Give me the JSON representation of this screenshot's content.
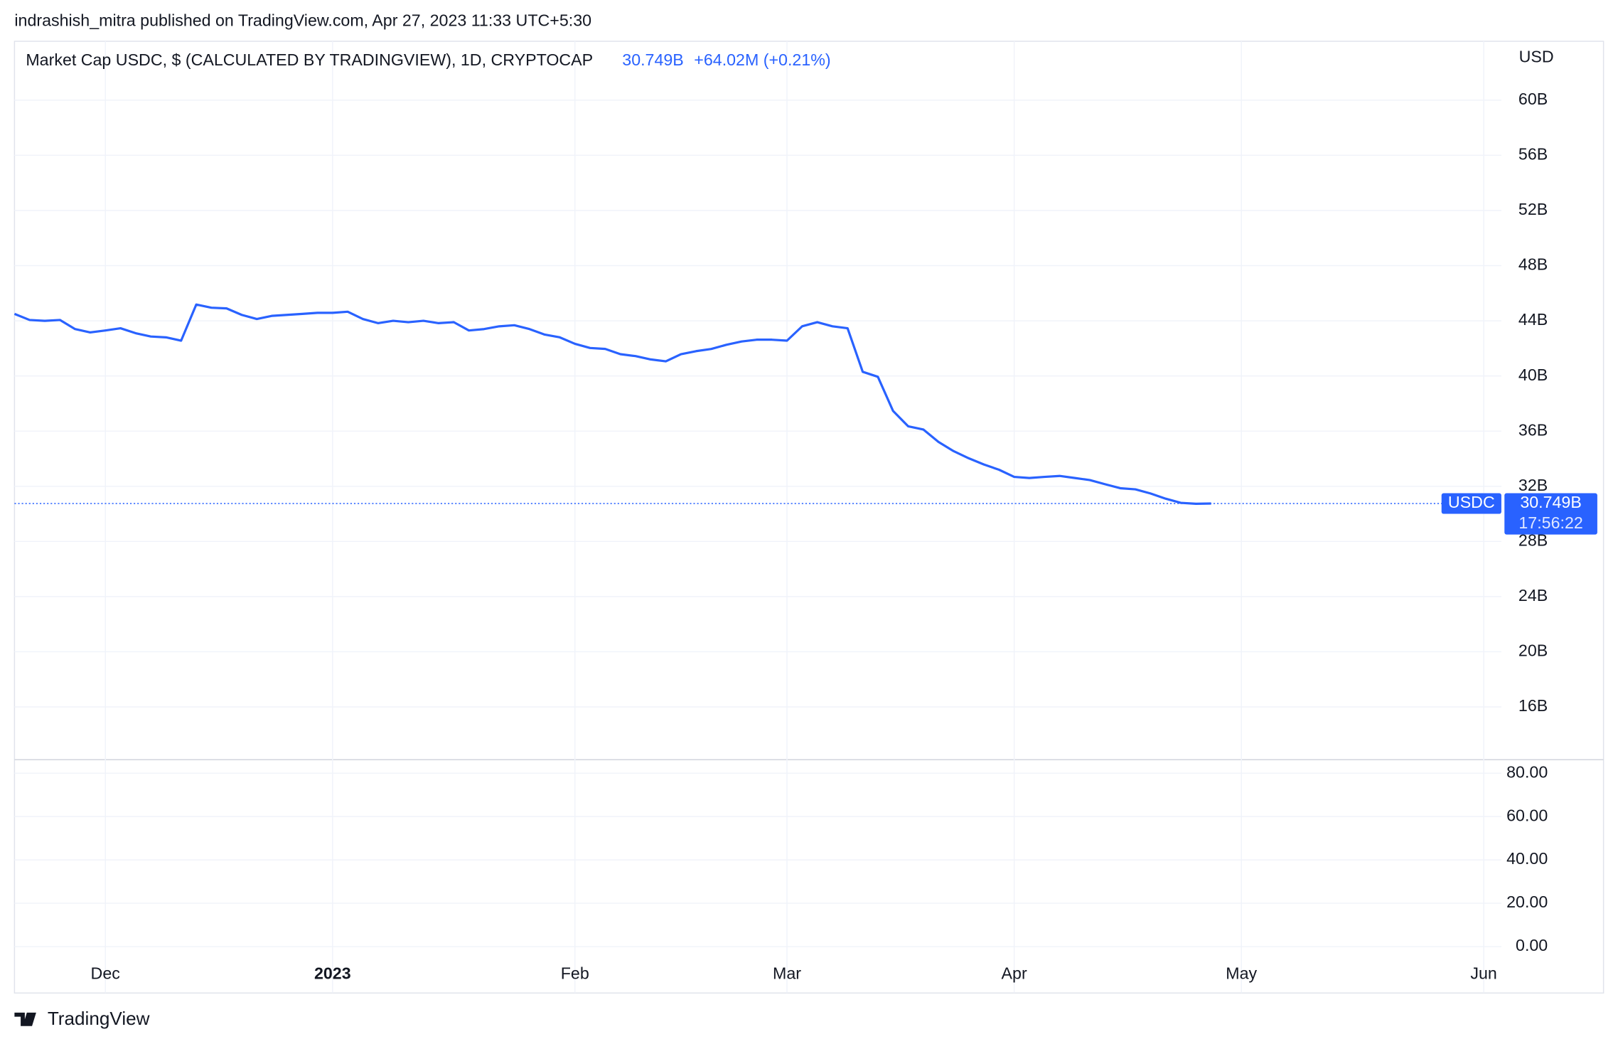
{
  "header": {
    "publisher": "indrashish_mitra published on TradingView.com, Apr 27, 2023 11:33 UTC+5:30"
  },
  "chart_data": [
    {
      "type": "line",
      "title": "Market Cap USDC, $ (CALCULATED BY TRADINGVIEW), 1D, CRYPTOCAP",
      "change": "+64.02M (+0.21%)",
      "currency": "USD",
      "categories": [
        null,
        null,
        null,
        null,
        null,
        null,
        "Dec",
        null,
        null,
        null,
        null,
        null,
        null,
        null,
        null,
        null,
        null,
        null,
        null,
        null,
        null,
        "2023",
        null,
        null,
        null,
        null,
        null,
        null,
        null,
        null,
        null,
        null,
        null,
        null,
        null,
        null,
        null,
        "Feb",
        null,
        null,
        null,
        null,
        null,
        null,
        null,
        null,
        null,
        null,
        null,
        null,
        null,
        "Mar",
        null,
        null,
        null,
        null,
        null,
        null,
        null,
        null,
        null,
        null,
        null,
        null,
        null,
        null,
        "Apr",
        null,
        null,
        null,
        null,
        null,
        null,
        null,
        null,
        null,
        null,
        null,
        null,
        null,
        null,
        "May",
        null,
        null,
        null,
        null,
        null,
        null,
        null,
        null,
        null,
        null,
        null,
        null,
        null,
        null,
        null,
        "Jun",
        null
      ],
      "series": [
        {
          "name": "USDC",
          "color": "#2962ff",
          "values": [
            44.5,
            44.06,
            44.0,
            44.06,
            43.4,
            43.16,
            43.3,
            43.46,
            43.1,
            42.86,
            42.8,
            42.56,
            45.18,
            44.95,
            44.9,
            44.43,
            44.13,
            44.36,
            44.43,
            44.5,
            44.58,
            44.58,
            44.66,
            44.13,
            43.83,
            44.0,
            43.9,
            44.0,
            43.83,
            43.9,
            43.3,
            43.4,
            43.6,
            43.68,
            43.4,
            43.0,
            42.8,
            42.33,
            42.03,
            41.96,
            41.58,
            41.44,
            41.2,
            41.06,
            41.58,
            41.8,
            41.96,
            42.26,
            42.5,
            42.63,
            42.63,
            42.56,
            43.6,
            43.9,
            43.6,
            43.46,
            40.3,
            39.94,
            37.47,
            36.35,
            36.12,
            35.22,
            34.55,
            34.03,
            33.58,
            33.2,
            32.68,
            32.6,
            32.68,
            32.75,
            32.6,
            32.45,
            32.15,
            31.86,
            31.78,
            31.48,
            31.1,
            30.8,
            30.73,
            30.749,
            null,
            null,
            null,
            null,
            null,
            null,
            null,
            null,
            null,
            null,
            null,
            null,
            null,
            null,
            null,
            null,
            null,
            null,
            null
          ]
        }
      ],
      "last": {
        "value": 30.749,
        "value_label": "30.749B",
        "countdown": "17:56:22"
      },
      "ylim": [
        12.17,
        64.27
      ],
      "yticks": [
        {
          "value": 16,
          "label": "16B"
        },
        {
          "value": 20,
          "label": "20B"
        },
        {
          "value": 24,
          "label": "24B"
        },
        {
          "value": 28,
          "label": "28B"
        },
        {
          "value": 32,
          "label": "32B"
        },
        {
          "value": 36,
          "label": "36B"
        },
        {
          "value": 40,
          "label": "40B"
        },
        {
          "value": 44,
          "label": "44B"
        },
        {
          "value": 48,
          "label": "48B"
        },
        {
          "value": 52,
          "label": "52B"
        },
        {
          "value": 56,
          "label": "56B"
        },
        {
          "value": 60,
          "label": "60B"
        }
      ],
      "grid": true
    },
    {
      "type": "volume",
      "ylim": [
        -21.4,
        86.2
      ],
      "yticks": [
        {
          "value": 0,
          "label": "0.00"
        },
        {
          "value": 20,
          "label": "20.00"
        },
        {
          "value": 40,
          "label": "40.00"
        },
        {
          "value": 60,
          "label": "60.00"
        },
        {
          "value": 80,
          "label": "80.00"
        }
      ],
      "grid": true
    }
  ],
  "footer": {
    "brand": "TradingView"
  }
}
